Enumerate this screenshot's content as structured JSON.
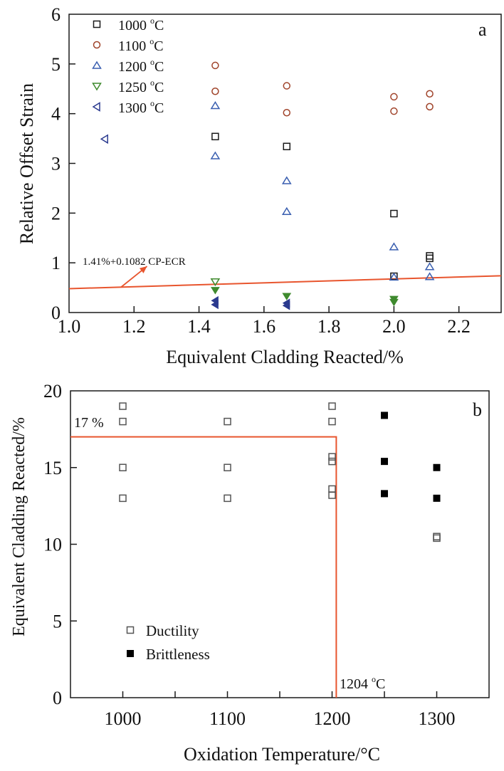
{
  "chart_data": [
    {
      "panel": "a",
      "type": "scatter",
      "panel_label": "a",
      "xlabel": "Equivalent Cladding Reacted/%",
      "ylabel": "Relative Offset Strain",
      "xlim": [
        1.0,
        2.33
      ],
      "ylim": [
        0,
        6
      ],
      "xticks": [
        1.0,
        1.2,
        1.4,
        1.6,
        1.8,
        2.0,
        2.2
      ],
      "xtick_labels": [
        "1.0",
        "1.2",
        "1.4",
        "1.6",
        "1.8",
        "2.0",
        "2.2"
      ],
      "yticks": [
        0,
        1,
        2,
        3,
        4,
        5,
        6
      ],
      "ytick_labels": [
        "0",
        "1",
        "2",
        "3",
        "4",
        "5",
        "6"
      ],
      "grid": false,
      "legend_position": "top-left",
      "series": [
        {
          "name": "1000 °C",
          "label_main": "1000 ",
          "label_sup": "o",
          "label_unit": "C",
          "marker": "square-open",
          "color": "#1a1a1a",
          "points": [
            [
              1.45,
              3.54
            ],
            [
              1.67,
              3.34
            ],
            [
              2.0,
              1.99
            ],
            [
              2.0,
              0.73
            ],
            [
              2.11,
              1.14
            ],
            [
              2.11,
              1.09
            ]
          ]
        },
        {
          "name": "1100 °C",
          "label_main": "1100 ",
          "label_sup": "o",
          "label_unit": "C",
          "marker": "circle-open",
          "color": "#a0432a",
          "points": [
            [
              1.45,
              4.97
            ],
            [
              1.45,
              4.45
            ],
            [
              1.67,
              4.56
            ],
            [
              1.67,
              4.02
            ],
            [
              2.0,
              4.34
            ],
            [
              2.0,
              4.05
            ],
            [
              2.11,
              4.4
            ],
            [
              2.11,
              4.14
            ]
          ]
        },
        {
          "name": "1200 °C",
          "label_main": "1200 ",
          "label_sup": "o",
          "label_unit": "C",
          "marker": "triangle-up-open",
          "color": "#3a5fb0",
          "points": [
            [
              1.45,
              4.16
            ],
            [
              1.45,
              3.15
            ],
            [
              1.67,
              2.65
            ],
            [
              1.67,
              2.03
            ],
            [
              2.0,
              1.32
            ],
            [
              2.0,
              0.71
            ],
            [
              2.11,
              0.92
            ],
            [
              2.11,
              0.72
            ]
          ]
        },
        {
          "name": "1250 °C",
          "label_main": "1250 ",
          "label_sup": "o",
          "label_unit": "C",
          "marker": "triangle-down-open",
          "color": "#3f8a2e",
          "points": [
            [
              1.45,
              0.62
            ]
          ]
        },
        {
          "name": "1250 °C (filled)",
          "marker": "triangle-down-filled",
          "color": "#3f8a2e",
          "legend": false,
          "points": [
            [
              1.45,
              0.45
            ],
            [
              1.67,
              0.33
            ],
            [
              2.0,
              0.27
            ],
            [
              2.0,
              0.21
            ]
          ]
        },
        {
          "name": "1300 °C",
          "label_main": "1300 ",
          "label_sup": "o",
          "label_unit": "C",
          "marker": "triangle-left-open",
          "color": "#2b3a8f",
          "points": [
            [
              1.11,
              3.49
            ]
          ]
        },
        {
          "name": "1300 °C (filled)",
          "marker": "triangle-left-filled",
          "color": "#2b3a8f",
          "legend": false,
          "points": [
            [
              1.45,
              0.24
            ],
            [
              1.45,
              0.16
            ],
            [
              1.67,
              0.19
            ],
            [
              1.67,
              0.14
            ]
          ]
        }
      ],
      "lines": [
        {
          "name": "threshold",
          "label": "1.41%+0.1082 CP-ECR",
          "color": "#e8552e",
          "points": [
            [
              1.0,
              0.48
            ],
            [
              2.33,
              0.74
            ]
          ]
        }
      ],
      "annotations": [
        {
          "text": "1.41%+0.1082 CP-ECR",
          "color": "#e8552e",
          "x": 1.0,
          "y": 1.05,
          "arrow_from": [
            1.16,
            0.51
          ],
          "arrow_to": [
            1.24,
            0.93
          ]
        }
      ]
    },
    {
      "panel": "b",
      "type": "scatter",
      "panel_label": "b",
      "xlabel": "Oxidation Temperature/°C",
      "ylabel": "Equivalent Cladding Reacted/%",
      "xlim": [
        950,
        1350
      ],
      "ylim": [
        0,
        20
      ],
      "xticks": [
        1000,
        1050,
        1100,
        1150,
        1200,
        1250,
        1300
      ],
      "xtick_labels": [
        "1000",
        "",
        "1100",
        "",
        "1200",
        "",
        "1300"
      ],
      "yticks": [
        0,
        5,
        10,
        15,
        20
      ],
      "ytick_labels": [
        "0",
        "5",
        "10",
        "15",
        "20"
      ],
      "grid": false,
      "legend_position": "bottom-left",
      "series": [
        {
          "name": "Ductility",
          "marker": "square-open",
          "color": "#555555",
          "points": [
            [
              1000,
              19.0
            ],
            [
              1000,
              18.0
            ],
            [
              1000,
              15.0
            ],
            [
              1000,
              13.0
            ],
            [
              1100,
              18.0
            ],
            [
              1100,
              15.0
            ],
            [
              1100,
              13.0
            ],
            [
              1200,
              19.0
            ],
            [
              1200,
              18.0
            ],
            [
              1200,
              15.7
            ],
            [
              1200,
              15.4
            ],
            [
              1200,
              13.6
            ],
            [
              1200,
              13.2
            ],
            [
              1300,
              10.5
            ],
            [
              1300,
              10.4
            ]
          ]
        },
        {
          "name": "Brittleness",
          "marker": "square-filled",
          "color": "#000000",
          "points": [
            [
              1250,
              18.4
            ],
            [
              1250,
              15.4
            ],
            [
              1250,
              13.3
            ],
            [
              1300,
              15.0
            ],
            [
              1300,
              13.0
            ]
          ]
        }
      ],
      "limits": {
        "color": "#e8552e",
        "ecr_limit": 17,
        "ecr_label": "17 %",
        "temp_limit": 1204,
        "temp_label_main": "1204 ",
        "temp_label_sup": "o",
        "temp_label_unit": "C"
      }
    }
  ]
}
